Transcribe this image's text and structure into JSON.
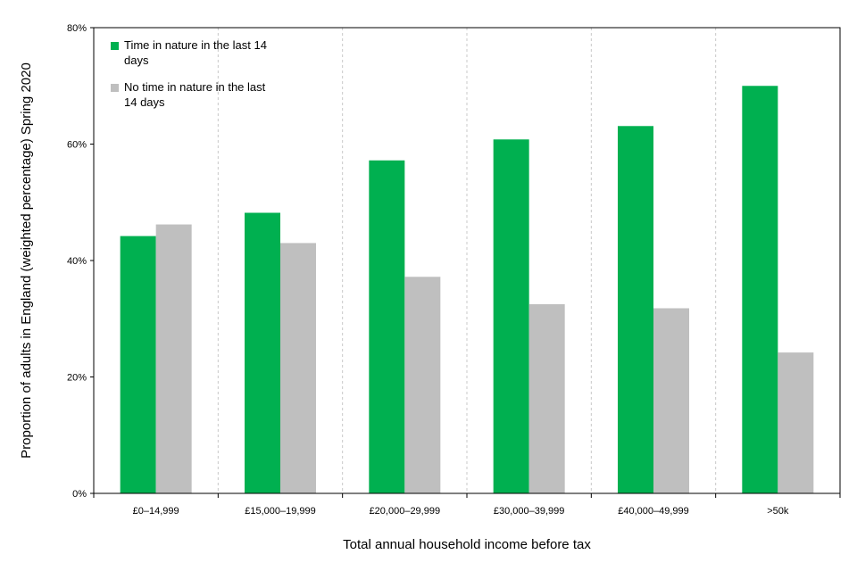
{
  "chart_data": {
    "type": "bar",
    "title": "",
    "xlabel": "Total annual household income before tax",
    "ylabel": "Proportion of adults in England (weighted percentage) Spring 2020",
    "ylim": [
      0,
      80
    ],
    "yticks": [
      0,
      20,
      40,
      60,
      80
    ],
    "ytick_labels": [
      "0%",
      "20%",
      "40%",
      "60%",
      "80%"
    ],
    "categories": [
      "£0–14,999",
      "£15,000–19,999",
      "£20,000–29,999",
      "£30,000–39,999",
      "£40,000–49,999",
      ">50k"
    ],
    "series": [
      {
        "name": "Time in nature in the last 14 days",
        "legend_lines": [
          "Time in nature in the last 14",
          "days"
        ],
        "color": "#00b050",
        "values": [
          44.2,
          48.2,
          57.2,
          60.8,
          63.1,
          70.0
        ]
      },
      {
        "name": "No time in nature in the last 14 days",
        "legend_lines": [
          "No time in nature in the last",
          "14 days"
        ],
        "color": "#bfbfbf",
        "values": [
          46.2,
          43.0,
          37.2,
          32.5,
          31.8,
          24.2
        ]
      }
    ],
    "legend_position": "top-left",
    "gridlines": "vertical dashed category separators"
  }
}
